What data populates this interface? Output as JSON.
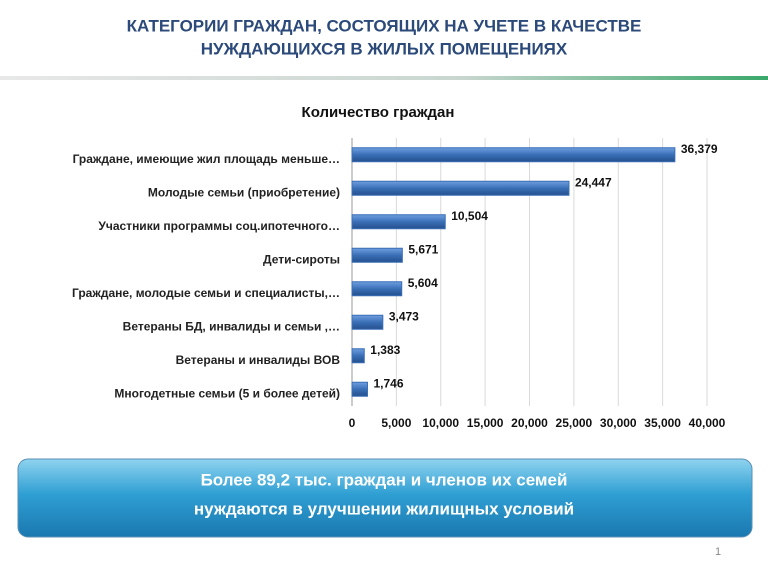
{
  "header": {
    "title_lines": [
      "КАТЕГОРИИ ГРАЖДАН, СОСТОЯЩИХ НА УЧЕТЕ В КАЧЕСТВЕ",
      "НУЖДАЮЩИХСЯ В ЖИЛЫХ ПОМЕЩЕНИЯХ"
    ]
  },
  "chart_data": {
    "type": "hbar",
    "title": "Количество граждан",
    "categories": [
      "Граждане, имеющие жил площадь меньше…",
      "Молодые семьи (приобретение)",
      "Участники программы соц.ипотечного…",
      "Дети-сироты",
      "Граждане, молодые семьи и специалисты,…",
      "Ветераны БД, инвалиды и семьи ,…",
      "Ветераны и инвалиды ВОВ",
      "Многодетные семьи (5 и более детей)"
    ],
    "values": [
      36379,
      24447,
      10504,
      5671,
      5604,
      3473,
      1383,
      1746
    ],
    "value_labels": [
      "36,379",
      "24,447",
      "10,504",
      "5,671",
      "5,604",
      "3,473",
      "1,383",
      "1,746"
    ],
    "color": "#3a6fb6",
    "xlim": [
      0,
      40000
    ],
    "xticks": [
      0,
      {
        "value": 5000,
        "label": "5,000"
      },
      {
        "value": 10000,
        "label": "10,000"
      },
      {
        "value": 15000,
        "label": "15,000"
      },
      {
        "value": 20000,
        "label": "20,000"
      },
      {
        "value": 25000,
        "label": "25,000"
      },
      {
        "value": 30000,
        "label": "30,000"
      },
      {
        "value": 35000,
        "label": "35,000"
      },
      {
        "value": 40000,
        "label": "40,000"
      }
    ],
    "grid": true
  },
  "callout": {
    "lines": [
      "Более 89,2 тыс. граждан и членов их семей",
      "нуждаются в улучшении жилищных условий"
    ]
  },
  "page_number": 1
}
